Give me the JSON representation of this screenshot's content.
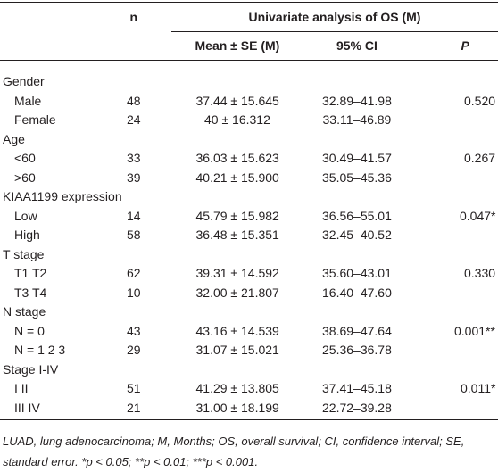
{
  "table": {
    "header": {
      "n": "n",
      "group_title": "Univariate analysis of OS (M)",
      "columns": [
        "Mean ± SE (M)",
        "95% CI",
        "P"
      ]
    },
    "groups": [
      {
        "label": "Gender",
        "rows": [
          {
            "label": "Male",
            "n": "48",
            "mean": "37.44 ± 15.645",
            "ci": "32.89–41.98",
            "p": "0.520"
          },
          {
            "label": "Female",
            "n": "24",
            "mean": "40 ± 16.312",
            "ci": "33.11–46.89"
          }
        ]
      },
      {
        "label": "Age",
        "rows": [
          {
            "label": "<60",
            "n": "33",
            "mean": "36.03 ± 15.623",
            "ci": "30.49–41.57",
            "p": "0.267"
          },
          {
            "label": ">60",
            "n": "39",
            "mean": "40.21 ± 15.900",
            "ci": "35.05–45.36"
          }
        ]
      },
      {
        "label": "KIAA1199 expression",
        "rows": [
          {
            "label": "Low",
            "n": "14",
            "mean": "45.79 ± 15.982",
            "ci": "36.56–55.01",
            "p": "0.047*"
          },
          {
            "label": "High",
            "n": "58",
            "mean": "36.48 ± 15.351",
            "ci": "32.45–40.52"
          }
        ]
      },
      {
        "label": "T stage",
        "rows": [
          {
            "label": "T1 T2",
            "n": "62",
            "mean": "39.31 ± 14.592",
            "ci": "35.60–43.01",
            "p": "0.330"
          },
          {
            "label": "T3 T4",
            "n": "10",
            "mean": "32.00 ± 21.807",
            "ci": "16.40–47.60"
          }
        ]
      },
      {
        "label": "N stage",
        "rows": [
          {
            "label": "N = 0",
            "n": "43",
            "mean": "43.16 ± 14.539",
            "ci": "38.69–47.64",
            "p": "0.001**"
          },
          {
            "label": "N = 1 2 3",
            "n": "29",
            "mean": "31.07 ± 15.021",
            "ci": "25.36–36.78"
          }
        ]
      },
      {
        "label": "Stage I-IV",
        "rows": [
          {
            "label": "I II",
            "n": "51",
            "mean": "41.29 ± 13.805",
            "ci": "37.41–45.18",
            "p": "0.011*"
          },
          {
            "label": "III IV",
            "n": "21",
            "mean": "31.00 ± 18.199",
            "ci": "22.72–39.28"
          }
        ]
      }
    ],
    "footnote": "LUAD, lung adenocarcinoma; M, Months; OS, overall survival; CI, confidence interval; SE, standard error. *p < 0.05; **p < 0.01; ***p < 0.001."
  }
}
